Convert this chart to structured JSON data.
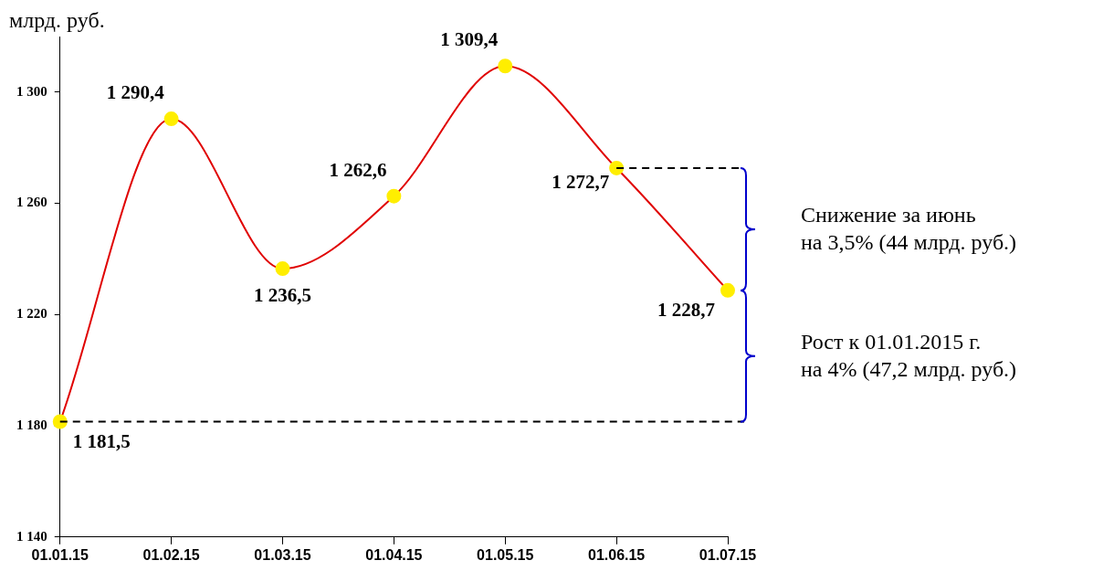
{
  "chart_data": {
    "type": "line",
    "ylabel": "млрд. руб.",
    "categories": [
      "01.01.15",
      "01.02.15",
      "01.03.15",
      "01.04.15",
      "01.05.15",
      "01.06.15",
      "01.07.15"
    ],
    "series": [
      {
        "color": "#e00000",
        "colors": [
          "#ffee00",
          "#ffee00",
          "#ffee00",
          "#ffee00",
          "#ffee00",
          "#ffee00",
          "#ffee00"
        ],
        "values": [
          1181.5,
          1290.4,
          1236.5,
          1262.6,
          1309.4,
          1272.7,
          1228.7
        ],
        "value_labels": [
          "1 181,5",
          "1 290,4",
          "1 236,5",
          "1 262,6",
          "1 309,4",
          "1 272,7",
          "1 228,7"
        ]
      }
    ],
    "ylim": [
      1140,
      1320
    ],
    "yticks": [
      {
        "value": 1140,
        "label": "1 140"
      },
      {
        "value": 1180,
        "label": "1 180"
      },
      {
        "value": 1220,
        "label": "1 220"
      },
      {
        "value": 1260,
        "label": "1 260"
      },
      {
        "value": 1300,
        "label": "1 300"
      }
    ],
    "marker": "circle",
    "grid": false,
    "legend": false,
    "ref_lines": [
      {
        "axis": "y",
        "value": 1181.5,
        "color": "#000000",
        "line_style": "dashed"
      },
      {
        "axis": "y",
        "value": 1272.7,
        "color": "#000000",
        "line_style": "dashed"
      }
    ],
    "annotations": [
      "Снижение за июнь\nна 3,5% (44 млрд. руб.)",
      "Рост к 01.01.2015 г.\nна 4% (47,2 млрд. руб.)"
    ]
  }
}
